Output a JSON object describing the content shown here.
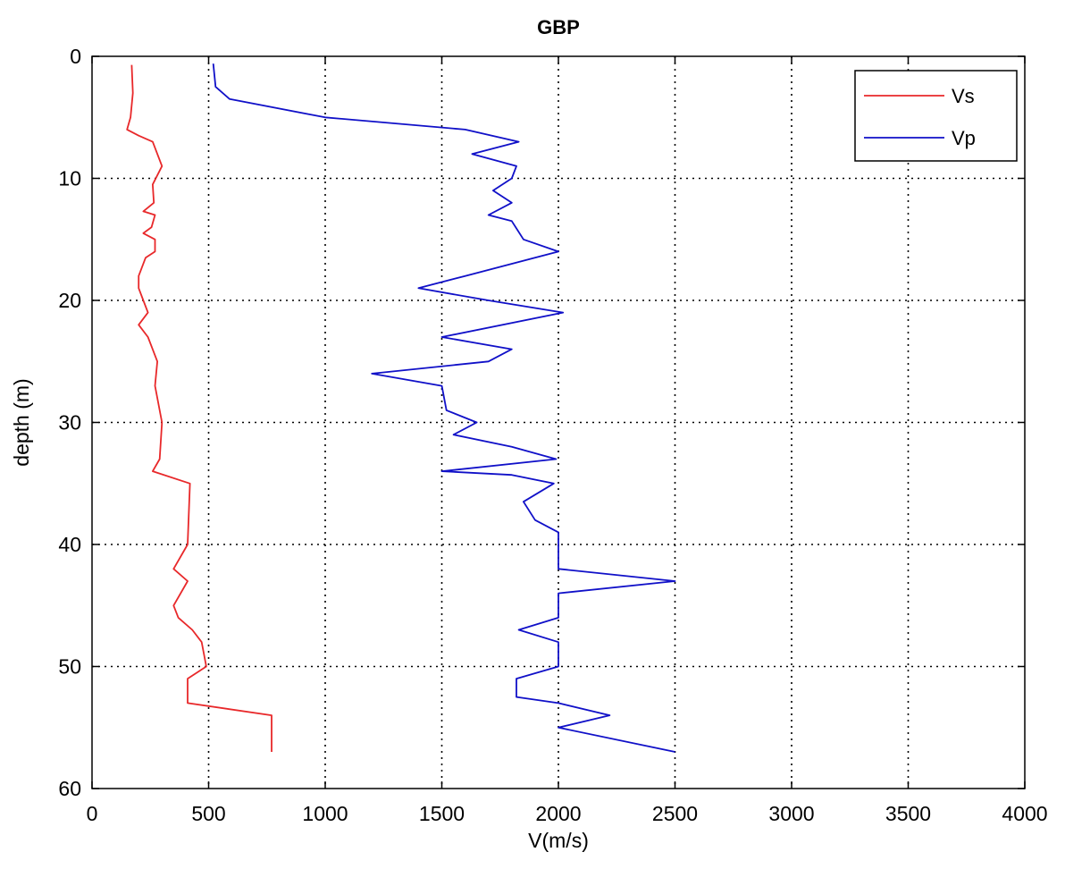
{
  "chart_data": {
    "type": "line",
    "title": "GBP",
    "xlabel": "V(m/s)",
    "ylabel": "depth (m)",
    "xlim": [
      0,
      4000
    ],
    "ylim": [
      0,
      60
    ],
    "y_reversed": true,
    "grid": true,
    "legend_position": "top-right",
    "x_ticks": [
      0,
      500,
      1000,
      1500,
      2000,
      2500,
      3000,
      3500,
      4000
    ],
    "y_ticks": [
      0,
      10,
      20,
      30,
      40,
      50,
      60
    ],
    "series": [
      {
        "name": "Vs",
        "color": "#e8282a",
        "points": [
          [
            170,
            0.7
          ],
          [
            175,
            3
          ],
          [
            165,
            5
          ],
          [
            150,
            6
          ],
          [
            200,
            6.5
          ],
          [
            260,
            7
          ],
          [
            300,
            9
          ],
          [
            260,
            10.5
          ],
          [
            265,
            12
          ],
          [
            220,
            12.7
          ],
          [
            270,
            13
          ],
          [
            255,
            14
          ],
          [
            220,
            14.5
          ],
          [
            270,
            15
          ],
          [
            270,
            16
          ],
          [
            230,
            16.5
          ],
          [
            200,
            18
          ],
          [
            200,
            19
          ],
          [
            220,
            20
          ],
          [
            240,
            21
          ],
          [
            200,
            22
          ],
          [
            240,
            23
          ],
          [
            280,
            25
          ],
          [
            270,
            27
          ],
          [
            300,
            30
          ],
          [
            290,
            33
          ],
          [
            260,
            34
          ],
          [
            420,
            35
          ],
          [
            410,
            40
          ],
          [
            350,
            42
          ],
          [
            410,
            43
          ],
          [
            350,
            45
          ],
          [
            370,
            46
          ],
          [
            430,
            47
          ],
          [
            470,
            48
          ],
          [
            490,
            50
          ],
          [
            410,
            51
          ],
          [
            410,
            53
          ],
          [
            770,
            54
          ],
          [
            770,
            57
          ]
        ]
      },
      {
        "name": "Vp",
        "color": "#1010c8",
        "points": [
          [
            520,
            0.6
          ],
          [
            530,
            2.5
          ],
          [
            590,
            3.5
          ],
          [
            1000,
            5
          ],
          [
            1600,
            6
          ],
          [
            1830,
            7
          ],
          [
            1630,
            8
          ],
          [
            1820,
            9
          ],
          [
            1800,
            10
          ],
          [
            1720,
            11
          ],
          [
            1800,
            12
          ],
          [
            1700,
            13
          ],
          [
            1800,
            13.5
          ],
          [
            1850,
            15
          ],
          [
            2000,
            16
          ],
          [
            1600,
            18
          ],
          [
            1400,
            19
          ],
          [
            1700,
            20
          ],
          [
            2020,
            21
          ],
          [
            1500,
            23
          ],
          [
            1800,
            24
          ],
          [
            1700,
            25
          ],
          [
            1200,
            26
          ],
          [
            1500,
            27
          ],
          [
            1520,
            29
          ],
          [
            1650,
            30
          ],
          [
            1550,
            31
          ],
          [
            1800,
            32
          ],
          [
            1990,
            33
          ],
          [
            1500,
            34
          ],
          [
            1800,
            34.3
          ],
          [
            1980,
            35
          ],
          [
            1850,
            36.5
          ],
          [
            1900,
            38
          ],
          [
            2000,
            39
          ],
          [
            2000,
            42
          ],
          [
            2500,
            43
          ],
          [
            2000,
            44
          ],
          [
            2000,
            46
          ],
          [
            1830,
            47
          ],
          [
            2000,
            48
          ],
          [
            2000,
            50
          ],
          [
            1820,
            51
          ],
          [
            1820,
            52.5
          ],
          [
            2000,
            53
          ],
          [
            2220,
            54
          ],
          [
            2000,
            55
          ],
          [
            2500,
            57
          ]
        ]
      }
    ]
  }
}
